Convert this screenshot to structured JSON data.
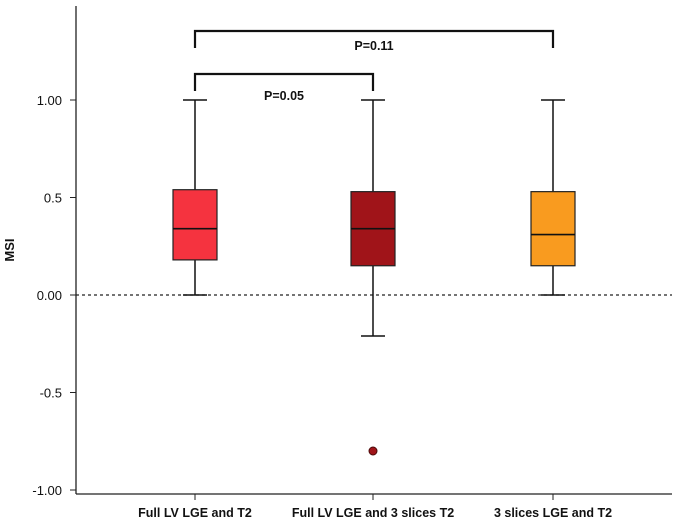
{
  "chart_data": {
    "type": "boxplot",
    "ylabel": "MSI",
    "ylim": [
      -1.0,
      1.4
    ],
    "yticks": [
      {
        "value": 1.0,
        "label": "1.00"
      },
      {
        "value": 0.5,
        "label": "0.5"
      },
      {
        "value": 0.0,
        "label": "0.00"
      },
      {
        "value": -0.5,
        "label": "-0.5"
      },
      {
        "value": -1.0,
        "label": "-1.00"
      }
    ],
    "categories": [
      "Full LV LGE and T2",
      "Full LV LGE and 3 slices T2",
      "3 slices LGE and T2"
    ],
    "boxes": [
      {
        "category": "Full LV LGE and T2",
        "whisker_low": 0.0,
        "q1": 0.18,
        "median": 0.34,
        "q3": 0.54,
        "whisker_high": 1.0,
        "outliers": [],
        "color": "#f5333f"
      },
      {
        "category": "Full LV LGE and 3 slices T2",
        "whisker_low": -0.21,
        "q1": 0.15,
        "median": 0.34,
        "q3": 0.53,
        "whisker_high": 1.0,
        "outliers": [
          -0.8
        ],
        "color": "#a01419"
      },
      {
        "category": "3 slices LGE and T2",
        "whisker_low": 0.0,
        "q1": 0.15,
        "median": 0.31,
        "q3": 0.53,
        "whisker_high": 1.0,
        "outliers": [],
        "color": "#f99b1f"
      }
    ],
    "reference_line": {
      "value": 0.0,
      "style": "dotted"
    },
    "comparisons": [
      {
        "from": 0,
        "to": 1,
        "label": "P=0.05"
      },
      {
        "from": 0,
        "to": 2,
        "label": "P=0.11"
      }
    ],
    "grid": false
  }
}
